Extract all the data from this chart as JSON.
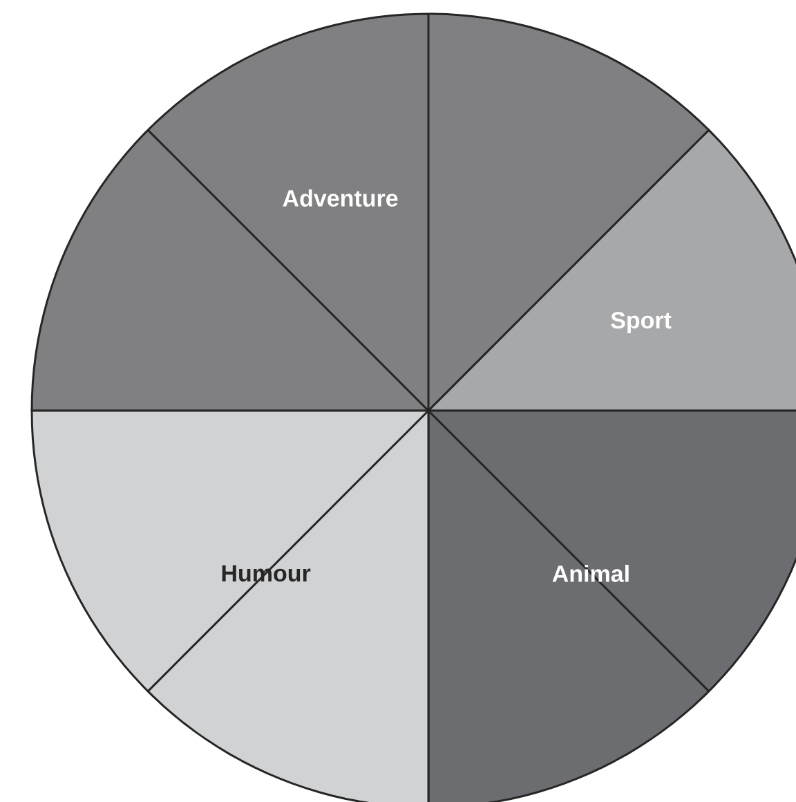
{
  "chart_data": {
    "type": "pie",
    "categories": [
      "Adventure",
      "Sport",
      "Animal",
      "Humour"
    ],
    "values": [
      37.5,
      12.5,
      25,
      25
    ],
    "colors": [
      "#808083",
      "#a7a8aa",
      "#6c6d70",
      "#d1d2d4"
    ],
    "grid": true
  }
}
